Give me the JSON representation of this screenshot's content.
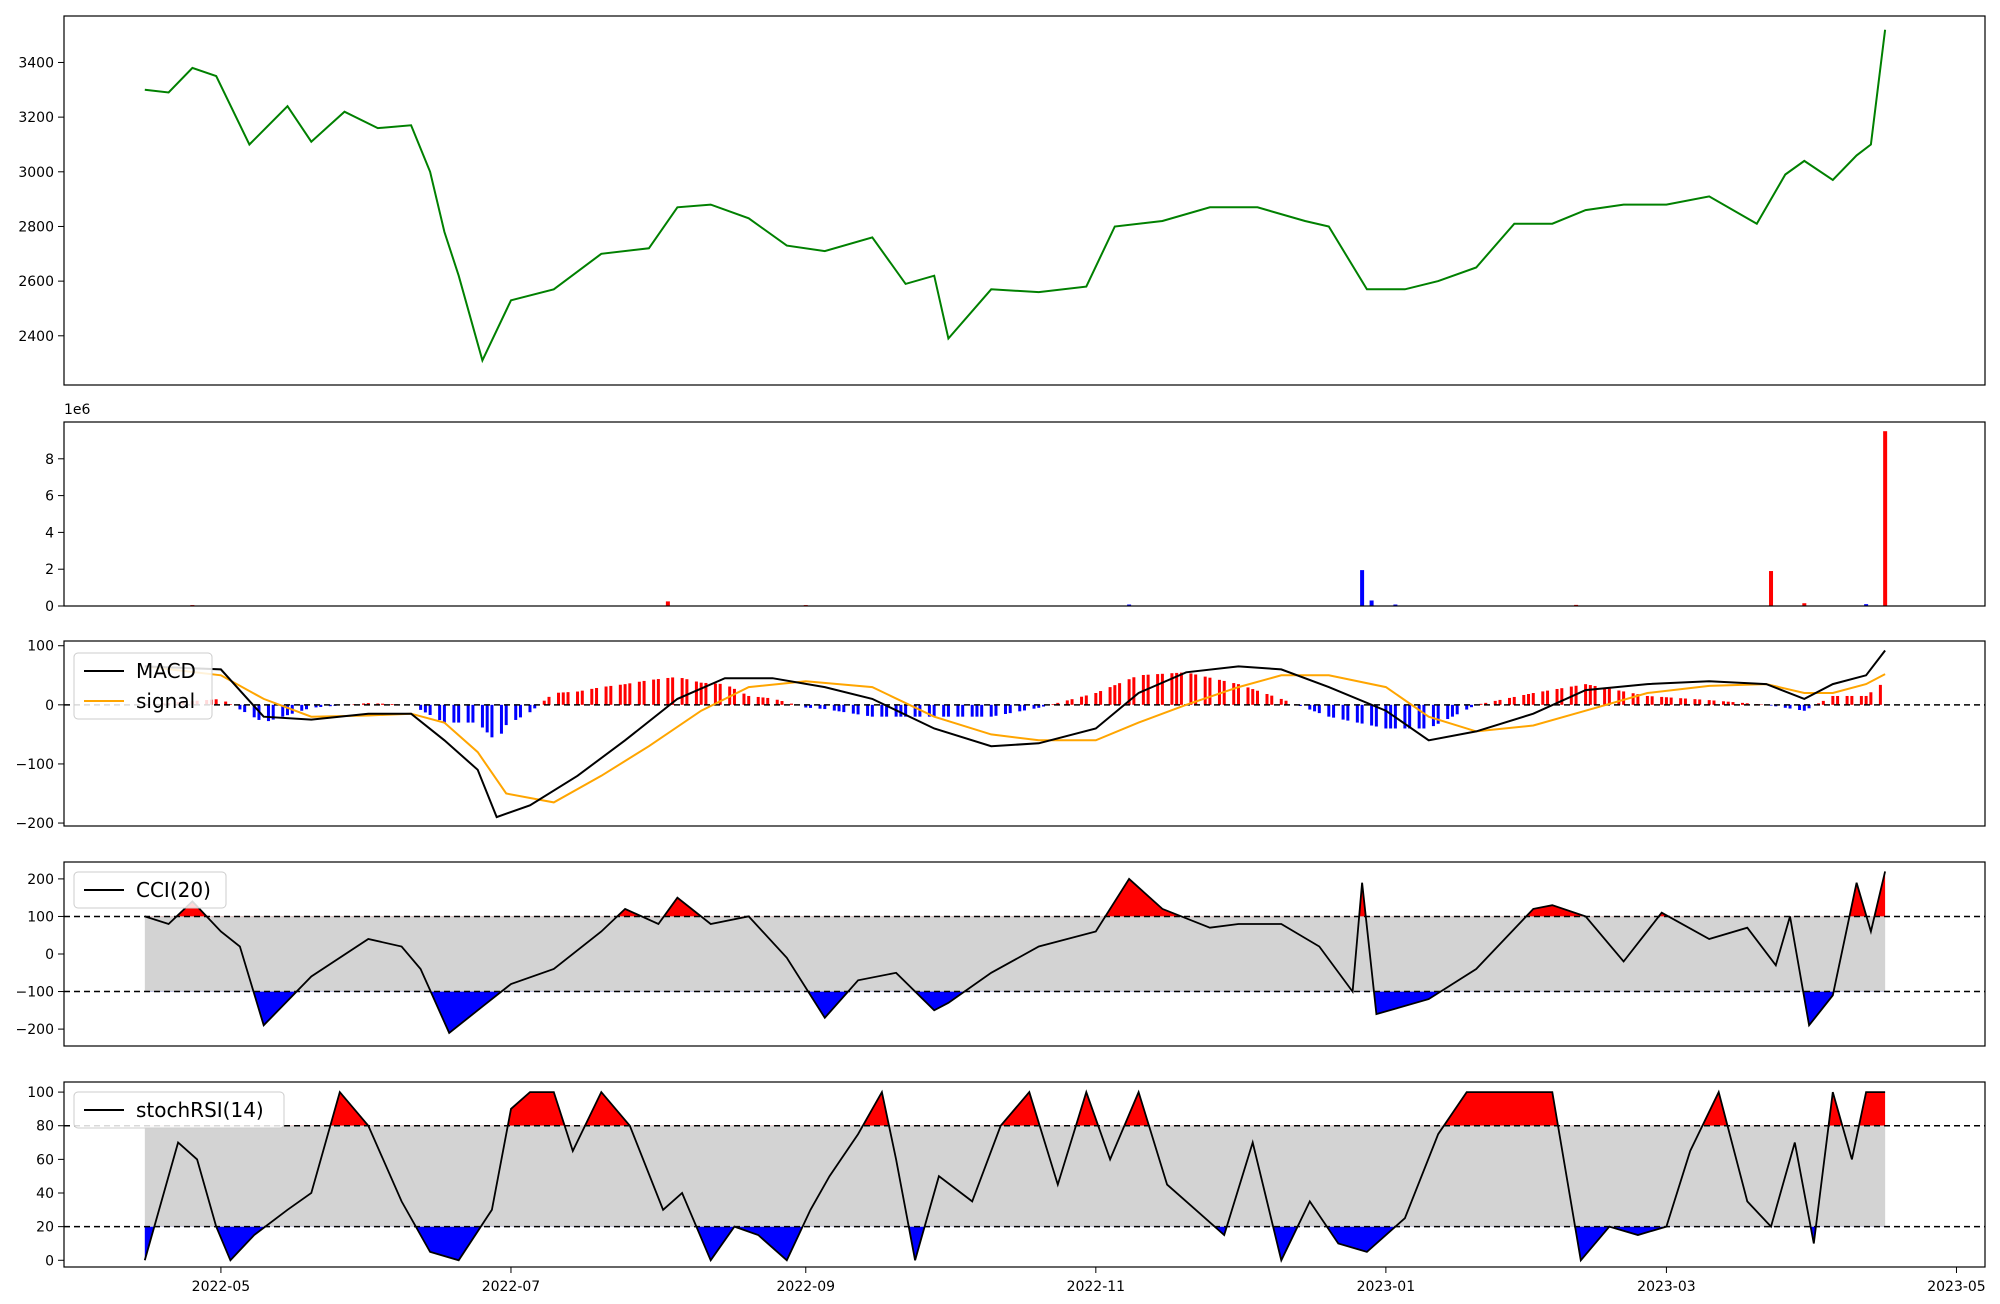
{
  "chart_data": [
    {
      "type": "line",
      "panel": "price",
      "ylim": [
        2220,
        3570
      ],
      "yticks": [
        "2400",
        "2600",
        "2800",
        "3000",
        "3200",
        "3400"
      ],
      "color": "#008000",
      "dates": [
        "2022-04-15",
        "2022-04-20",
        "2022-04-25",
        "2022-04-30",
        "2022-05-07",
        "2022-05-15",
        "2022-05-20",
        "2022-05-27",
        "2022-06-03",
        "2022-06-10",
        "2022-06-14",
        "2022-06-17",
        "2022-06-20",
        "2022-06-25",
        "2022-07-01",
        "2022-07-10",
        "2022-07-20",
        "2022-07-30",
        "2022-08-05",
        "2022-08-12",
        "2022-08-20",
        "2022-08-28",
        "2022-09-05",
        "2022-09-15",
        "2022-09-22",
        "2022-09-28",
        "2022-10-01",
        "2022-10-10",
        "2022-10-20",
        "2022-10-30",
        "2022-11-05",
        "2022-11-15",
        "2022-11-25",
        "2022-12-05",
        "2022-12-15",
        "2022-12-20",
        "2022-12-28",
        "2023-01-05",
        "2023-01-12",
        "2023-01-20",
        "2023-01-28",
        "2023-02-05",
        "2023-02-12",
        "2023-02-20",
        "2023-03-01",
        "2023-03-10",
        "2023-03-20",
        "2023-03-26",
        "2023-03-30",
        "2023-04-05",
        "2023-04-10",
        "2023-04-13",
        "2023-04-16"
      ],
      "values": [
        3300,
        3290,
        3380,
        3350,
        3100,
        3240,
        3110,
        3220,
        3160,
        3170,
        3000,
        2780,
        2620,
        2310,
        2530,
        2570,
        2700,
        2720,
        2870,
        2880,
        2830,
        2730,
        2710,
        2760,
        2590,
        2620,
        2390,
        2570,
        2560,
        2580,
        2800,
        2820,
        2870,
        2870,
        2820,
        2800,
        2570,
        2570,
        2600,
        2650,
        2810,
        2810,
        2860,
        2880,
        2880,
        2910,
        2810,
        2990,
        3040,
        2970,
        3060,
        3100,
        3520
      ]
    },
    {
      "type": "bar",
      "panel": "volume",
      "exponent_label": "1e6",
      "ylim": [
        0,
        10
      ],
      "yticks": [
        "0",
        "2",
        "4",
        "6",
        "8"
      ],
      "bars": [
        {
          "date": "2022-04-25",
          "value": 0.05,
          "color": "#ff0000"
        },
        {
          "date": "2022-08-03",
          "value": 0.25,
          "color": "#ff0000"
        },
        {
          "date": "2022-09-01",
          "value": 0.05,
          "color": "#ff0000"
        },
        {
          "date": "2022-11-08",
          "value": 0.08,
          "color": "#0000ff"
        },
        {
          "date": "2022-12-27",
          "value": 1.95,
          "color": "#0000ff"
        },
        {
          "date": "2022-12-29",
          "value": 0.3,
          "color": "#0000ff"
        },
        {
          "date": "2023-01-03",
          "value": 0.08,
          "color": "#0000ff"
        },
        {
          "date": "2023-02-10",
          "value": 0.06,
          "color": "#ff0000"
        },
        {
          "date": "2023-03-23",
          "value": 1.9,
          "color": "#ff0000"
        },
        {
          "date": "2023-03-30",
          "value": 0.15,
          "color": "#ff0000"
        },
        {
          "date": "2023-04-12",
          "value": 0.1,
          "color": "#0000ff"
        },
        {
          "date": "2023-04-16",
          "value": 9.5,
          "color": "#ff0000"
        }
      ]
    },
    {
      "type": "line",
      "panel": "macd",
      "ylim": [
        -205,
        108
      ],
      "yticks": [
        "100",
        "0",
        "−100",
        "−200"
      ],
      "legend": {
        "macd": "MACD",
        "signal": "signal"
      },
      "zero_line": 0,
      "macd_dates": [
        "2022-04-15",
        "2022-05-01",
        "2022-05-10",
        "2022-05-20",
        "2022-06-01",
        "2022-06-10",
        "2022-06-17",
        "2022-06-24",
        "2022-06-28",
        "2022-07-05",
        "2022-07-15",
        "2022-07-25",
        "2022-08-05",
        "2022-08-15",
        "2022-08-25",
        "2022-09-05",
        "2022-09-15",
        "2022-09-28",
        "2022-10-10",
        "2022-10-20",
        "2022-11-01",
        "2022-11-10",
        "2022-11-20",
        "2022-12-01",
        "2022-12-10",
        "2022-12-20",
        "2023-01-01",
        "2023-01-10",
        "2023-01-20",
        "2023-02-01",
        "2023-02-12",
        "2023-02-25",
        "2023-03-10",
        "2023-03-22",
        "2023-03-30",
        "2023-04-05",
        "2023-04-12",
        "2023-04-16"
      ],
      "macd_values": [
        65,
        60,
        -20,
        -25,
        -15,
        -15,
        -60,
        -110,
        -190,
        -170,
        -120,
        -60,
        10,
        45,
        45,
        30,
        10,
        -40,
        -70,
        -65,
        -40,
        20,
        55,
        65,
        60,
        30,
        -10,
        -60,
        -45,
        -15,
        25,
        35,
        40,
        35,
        10,
        35,
        50,
        92
      ],
      "signal_dates": [
        "2022-04-15",
        "2022-05-01",
        "2022-05-10",
        "2022-05-20",
        "2022-06-01",
        "2022-06-10",
        "2022-06-17",
        "2022-06-24",
        "2022-06-30",
        "2022-07-10",
        "2022-07-20",
        "2022-07-30",
        "2022-08-10",
        "2022-08-20",
        "2022-09-01",
        "2022-09-15",
        "2022-09-28",
        "2022-10-10",
        "2022-10-20",
        "2022-11-01",
        "2022-11-10",
        "2022-11-20",
        "2022-12-01",
        "2022-12-10",
        "2022-12-20",
        "2023-01-01",
        "2023-01-10",
        "2023-01-20",
        "2023-02-01",
        "2023-02-12",
        "2023-02-25",
        "2023-03-10",
        "2023-03-22",
        "2023-03-30",
        "2023-04-05",
        "2023-04-12",
        "2023-04-16"
      ],
      "signal_values": [
        65,
        50,
        10,
        -20,
        -18,
        -15,
        -30,
        -80,
        -150,
        -165,
        -120,
        -70,
        -10,
        30,
        40,
        30,
        -20,
        -50,
        -60,
        -60,
        -30,
        0,
        30,
        50,
        50,
        30,
        -20,
        -45,
        -35,
        -10,
        20,
        32,
        35,
        20,
        20,
        35,
        52
      ]
    },
    {
      "type": "area",
      "panel": "cci",
      "ylim": [
        -245,
        245
      ],
      "yticks": [
        "200",
        "100",
        "0",
        "−100",
        "−200"
      ],
      "legend": "CCI(20)",
      "bands": [
        100,
        -100
      ],
      "dates": [
        "2022-04-15",
        "2022-04-20",
        "2022-04-25",
        "2022-05-01",
        "2022-05-05",
        "2022-05-10",
        "2022-05-20",
        "2022-06-01",
        "2022-06-08",
        "2022-06-12",
        "2022-06-18",
        "2022-06-25",
        "2022-07-01",
        "2022-07-10",
        "2022-07-20",
        "2022-07-25",
        "2022-08-01",
        "2022-08-05",
        "2022-08-12",
        "2022-08-20",
        "2022-08-28",
        "2022-09-05",
        "2022-09-12",
        "2022-09-20",
        "2022-09-28",
        "2022-10-01",
        "2022-10-10",
        "2022-10-20",
        "2022-11-01",
        "2022-11-08",
        "2022-11-15",
        "2022-11-25",
        "2022-12-01",
        "2022-12-10",
        "2022-12-18",
        "2022-12-25",
        "2022-12-27",
        "2022-12-30",
        "2023-01-10",
        "2023-01-20",
        "2023-02-01",
        "2023-02-05",
        "2023-02-12",
        "2023-02-20",
        "2023-02-28",
        "2023-03-10",
        "2023-03-18",
        "2023-03-24",
        "2023-03-27",
        "2023-03-31",
        "2023-04-05",
        "2023-04-10",
        "2023-04-13",
        "2023-04-16"
      ],
      "values": [
        100,
        80,
        140,
        60,
        20,
        -190,
        -60,
        40,
        20,
        -40,
        -210,
        -140,
        -80,
        -40,
        60,
        120,
        80,
        150,
        80,
        100,
        -10,
        -170,
        -70,
        -50,
        -150,
        -130,
        -50,
        20,
        60,
        200,
        120,
        70,
        80,
        80,
        20,
        -100,
        190,
        -160,
        -120,
        -40,
        120,
        130,
        100,
        -20,
        110,
        40,
        70,
        -30,
        100,
        -190,
        -110,
        190,
        60,
        220
      ]
    },
    {
      "type": "area",
      "panel": "stochrsi",
      "ylim": [
        -4,
        106
      ],
      "yticks": [
        "100",
        "80",
        "60",
        "40",
        "20",
        "0"
      ],
      "legend": "stochRSI(14)",
      "bands": [
        80,
        20
      ],
      "dates": [
        "2022-04-15",
        "2022-04-22",
        "2022-04-26",
        "2022-04-30",
        "2022-05-03",
        "2022-05-08",
        "2022-05-15",
        "2022-05-20",
        "2022-05-26",
        "2022-06-01",
        "2022-06-08",
        "2022-06-14",
        "2022-06-20",
        "2022-06-27",
        "2022-07-01",
        "2022-07-05",
        "2022-07-10",
        "2022-07-14",
        "2022-07-20",
        "2022-07-26",
        "2022-08-02",
        "2022-08-06",
        "2022-08-12",
        "2022-08-17",
        "2022-08-22",
        "2022-08-28",
        "2022-09-02",
        "2022-09-06",
        "2022-09-12",
        "2022-09-17",
        "2022-09-20",
        "2022-09-24",
        "2022-09-29",
        "2022-10-06",
        "2022-10-12",
        "2022-10-18",
        "2022-10-24",
        "2022-10-30",
        "2022-11-04",
        "2022-11-10",
        "2022-11-16",
        "2022-11-22",
        "2022-11-28",
        "2022-12-04",
        "2022-12-10",
        "2022-12-16",
        "2022-12-22",
        "2022-12-28",
        "2023-01-05",
        "2023-01-12",
        "2023-01-18",
        "2023-01-24",
        "2023-01-30",
        "2023-02-05",
        "2023-02-11",
        "2023-02-17",
        "2023-02-23",
        "2023-03-01",
        "2023-03-06",
        "2023-03-12",
        "2023-03-18",
        "2023-03-23",
        "2023-03-28",
        "2023-04-01",
        "2023-04-05",
        "2023-04-09",
        "2023-04-12",
        "2023-04-16"
      ],
      "values": [
        0,
        70,
        60,
        20,
        0,
        15,
        30,
        40,
        100,
        80,
        35,
        5,
        0,
        30,
        90,
        100,
        100,
        65,
        100,
        80,
        30,
        40,
        0,
        20,
        15,
        0,
        30,
        50,
        75,
        100,
        60,
        0,
        50,
        35,
        80,
        100,
        45,
        100,
        60,
        100,
        45,
        30,
        15,
        70,
        0,
        35,
        10,
        5,
        25,
        75,
        100,
        100,
        100,
        100,
        0,
        20,
        15,
        20,
        65,
        100,
        35,
        20,
        70,
        10,
        100,
        60,
        100,
        100
      ]
    }
  ],
  "x_axis": {
    "ticks": [
      {
        "date": "2022-05-01",
        "label": "2022-05"
      },
      {
        "date": "2022-07-01",
        "label": "2022-07"
      },
      {
        "date": "2022-09-01",
        "label": "2022-09"
      },
      {
        "date": "2022-11-01",
        "label": "2022-11"
      },
      {
        "date": "2023-01-01",
        "label": "2023-01"
      },
      {
        "date": "2023-03-01",
        "label": "2023-03"
      },
      {
        "date": "2023-05-01",
        "label": "2023-05"
      }
    ]
  },
  "colors": {
    "up": "#ff0000",
    "down": "#0000ff",
    "neutral_fill": "#d3d3d3",
    "line": "#000000",
    "signal": "#ffa500",
    "price": "#008000"
  }
}
